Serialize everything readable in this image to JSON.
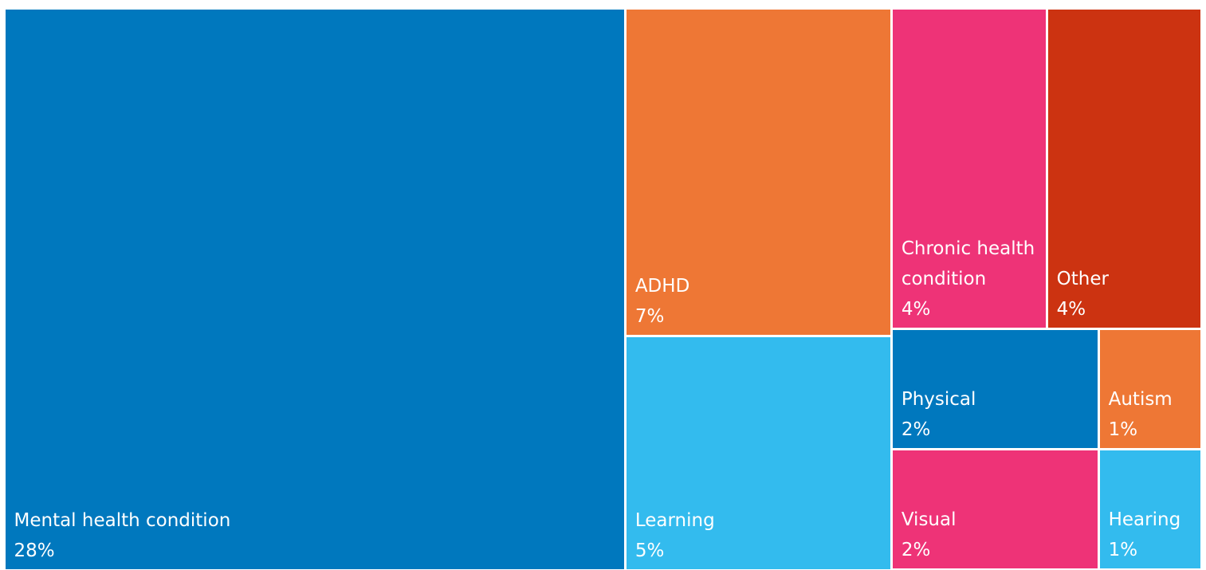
{
  "chart_data": {
    "type": "treemap",
    "categories": [
      "Mental health condition",
      "ADHD",
      "Learning",
      "Chronic health condition",
      "Other",
      "Physical",
      "Autism",
      "Visual",
      "Hearing"
    ],
    "values": [
      28,
      7,
      5,
      4,
      4,
      2,
      1,
      2,
      1
    ],
    "value_labels": [
      "28%",
      "7%",
      "5%",
      "4%",
      "4%",
      "2%",
      "1%",
      "2%",
      "1%"
    ],
    "colors": [
      "#0078be",
      "#ee7735",
      "#33bbee",
      "#ee3377",
      "#cc3311",
      "#0078be",
      "#ee7735",
      "#ee3377",
      "#33bbee"
    ]
  }
}
